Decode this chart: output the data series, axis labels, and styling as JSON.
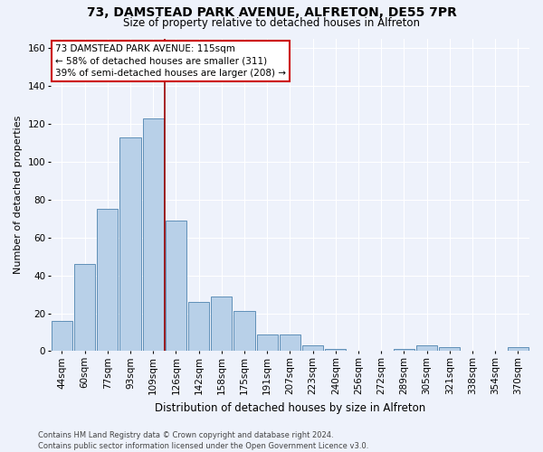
{
  "title_line1": "73, DAMSTEAD PARK AVENUE, ALFRETON, DE55 7PR",
  "title_line2": "Size of property relative to detached houses in Alfreton",
  "xlabel": "Distribution of detached houses by size in Alfreton",
  "ylabel": "Number of detached properties",
  "footnote": "Contains HM Land Registry data © Crown copyright and database right 2024.\nContains public sector information licensed under the Open Government Licence v3.0.",
  "bar_labels": [
    "44sqm",
    "60sqm",
    "77sqm",
    "93sqm",
    "109sqm",
    "126sqm",
    "142sqm",
    "158sqm",
    "175sqm",
    "191sqm",
    "207sqm",
    "223sqm",
    "240sqm",
    "256sqm",
    "272sqm",
    "289sqm",
    "305sqm",
    "321sqm",
    "338sqm",
    "354sqm",
    "370sqm"
  ],
  "bar_values": [
    16,
    46,
    75,
    113,
    123,
    69,
    26,
    29,
    21,
    9,
    9,
    3,
    1,
    0,
    0,
    1,
    3,
    2,
    0,
    0,
    2
  ],
  "bar_color": "#b8d0e8",
  "bar_edge_color": "#6090b8",
  "background_color": "#eef2fb",
  "grid_color": "#ffffff",
  "vline_x": 4.5,
  "vline_color": "#990000",
  "annotation_text": "73 DAMSTEAD PARK AVENUE: 115sqm\n← 58% of detached houses are smaller (311)\n39% of semi-detached houses are larger (208) →",
  "annotation_box_facecolor": "#ffffff",
  "annotation_box_edgecolor": "#cc0000",
  "ylim": [
    0,
    165
  ],
  "yticks": [
    0,
    20,
    40,
    60,
    80,
    100,
    120,
    140,
    160
  ],
  "title_fontsize": 10,
  "subtitle_fontsize": 8.5,
  "ylabel_fontsize": 8,
  "xlabel_fontsize": 8.5,
  "tick_fontsize": 7.5,
  "annot_fontsize": 7.5,
  "footnote_fontsize": 6
}
